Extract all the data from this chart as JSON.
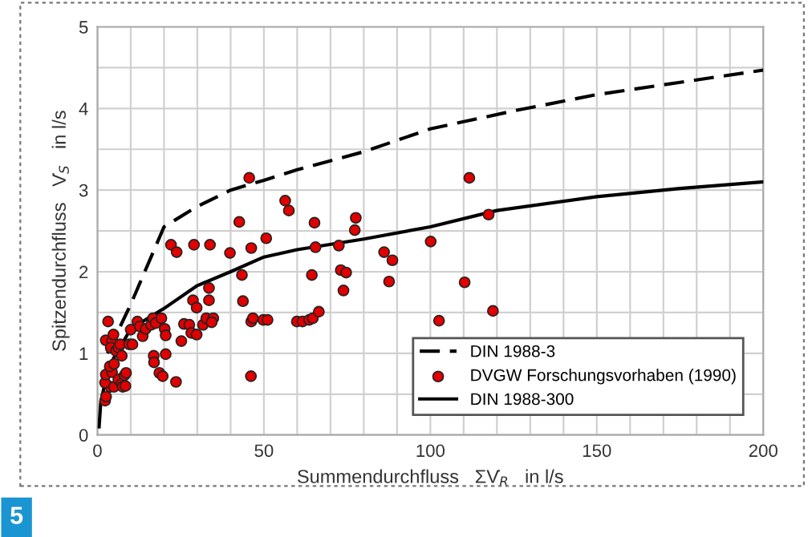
{
  "chart_data": {
    "type": "line",
    "xlabel": "Summendurchfluss   ΣV̇$_{R}$   in l/s",
    "ylabel": "Spitzendurchfluss   V̇$_{S}$   in l/s",
    "xlim": [
      0,
      200
    ],
    "ylim": [
      0,
      5
    ],
    "xticks": [
      0,
      {
        "value": 10,
        "label": null
      },
      {
        "value": 20,
        "label": null
      },
      {
        "value": 30,
        "label": null
      },
      {
        "value": 40,
        "label": null
      },
      50,
      {
        "value": 60,
        "label": null
      },
      {
        "value": 70,
        "label": null
      },
      {
        "value": 80,
        "label": null
      },
      {
        "value": 90,
        "label": null
      },
      100,
      {
        "value": 110,
        "label": null
      },
      {
        "value": 120,
        "label": null
      },
      {
        "value": 130,
        "label": null
      },
      {
        "value": 140,
        "label": null
      },
      150,
      {
        "value": 160,
        "label": null
      },
      {
        "value": 170,
        "label": null
      },
      {
        "value": 180,
        "label": null
      },
      {
        "value": 190,
        "label": null
      },
      200
    ],
    "yticks": [
      0,
      {
        "value": 0.5,
        "label": null
      },
      1,
      {
        "value": 1.5,
        "label": null
      },
      2,
      {
        "value": 2.5,
        "label": null
      },
      3,
      {
        "value": 3.5,
        "label": null
      },
      4,
      {
        "value": 4.5,
        "label": null
      },
      5
    ],
    "grid": true,
    "legend": "bottom right",
    "annotations": [
      "5"
    ],
    "series": [
      {
        "name": "DIN 1988-3",
        "line_style": "dashed",
        "marker": "none",
        "color": "#000000",
        "x": [
          3,
          10,
          20,
          30,
          40,
          50,
          60,
          80,
          100,
          125,
          150,
          175,
          200
        ],
        "values": [
          1.0,
          1.6,
          2.55,
          2.8,
          3.0,
          3.12,
          3.25,
          3.47,
          3.75,
          3.97,
          4.17,
          4.32,
          4.47
        ]
      },
      {
        "name": "DVGW Forschungsvorhaben (1990)",
        "type": "scatter",
        "marker": "circle",
        "color": "#e00000",
        "x": [
          2.3,
          2.6,
          3.9,
          2.3,
          2.5,
          4.4,
          3.7,
          3.2,
          2.5,
          4.4,
          4.0,
          4.8,
          5.6,
          6.3,
          6.8,
          5.0,
          7.3,
          5.0,
          6.3,
          7.3,
          8.1,
          7.6,
          8.6,
          8.4,
          9.5,
          10.5,
          10,
          12,
          12.7,
          13.6,
          14.5,
          16.1,
          16.7,
          17.5,
          16.9,
          17.0,
          19.2,
          20.2,
          20.5,
          20.5,
          18.6,
          19.6,
          23.6,
          22.1,
          23.8,
          25.2,
          26,
          27.6,
          28.7,
          29.8,
          28.2,
          29.8,
          29,
          31.7,
          32.7,
          33.5,
          33.5,
          34.8,
          34.3,
          33.8,
          39.8,
          42.6,
          43.4,
          43.7,
          45.6,
          46.1,
          46.2,
          46.2,
          46.7,
          49.8,
          51.1,
          50.7,
          56.4,
          57.5,
          59.9,
          61.6,
          63.6,
          64.7,
          66.5,
          65.2,
          65.5,
          64.4,
          72.5,
          73.1,
          74.7,
          73.9,
          77.6,
          77.3,
          86.1,
          88.6,
          87.6,
          100.1,
          111.7,
          117.5,
          110.3,
          102.6,
          118.8
        ],
        "values": [
          0.42,
          0.47,
          0.59,
          0.64,
          0.74,
          0.77,
          0.84,
          1.39,
          1.16,
          1.15,
          1.07,
          1.23,
          1.03,
          1.07,
          1.11,
          0.87,
          0.97,
          0.59,
          0.68,
          0.63,
          0.73,
          0.59,
          0.76,
          0.6,
          1.11,
          1.11,
          1.29,
          1.39,
          1.33,
          1.21,
          1.3,
          1.35,
          1.43,
          1.37,
          0.97,
          0.89,
          1.43,
          1.3,
          1.22,
          0.99,
          0.76,
          0.72,
          0.65,
          2.33,
          2.24,
          1.15,
          1.36,
          1.35,
          1.65,
          1.56,
          1.25,
          1.23,
          2.33,
          1.35,
          1.43,
          1.65,
          1.8,
          1.43,
          1.38,
          2.33,
          2.23,
          2.61,
          1.96,
          1.64,
          3.15,
          0.72,
          2.29,
          1.39,
          1.43,
          1.41,
          1.41,
          2.41,
          2.87,
          2.75,
          1.39,
          1.39,
          1.41,
          1.43,
          1.51,
          2.6,
          2.3,
          1.96,
          2.32,
          2.02,
          1.99,
          1.77,
          2.66,
          2.51,
          2.24,
          2.14,
          1.88,
          2.37,
          3.15,
          2.7,
          1.87,
          1.4,
          1.52
        ]
      },
      {
        "name": "DIN 1988-300",
        "line_style": "solid",
        "marker": "none",
        "color": "#000000",
        "x": [
          0.5,
          1,
          3,
          5,
          10,
          20,
          30,
          40,
          50,
          60,
          80,
          100,
          120,
          150,
          175,
          200
        ],
        "values": [
          0.1,
          0.4,
          0.77,
          0.95,
          1.3,
          1.55,
          1.83,
          2.0,
          2.18,
          2.27,
          2.4,
          2.55,
          2.75,
          2.92,
          3.02,
          3.1
        ]
      }
    ]
  }
}
